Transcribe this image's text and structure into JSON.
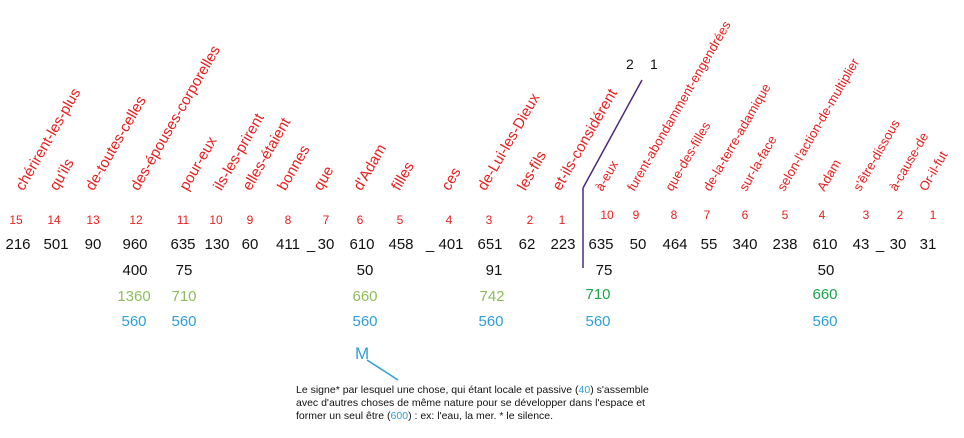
{
  "colors": {
    "red": "#e8201f",
    "black": "#111111",
    "olive": "#8fbc5a",
    "green": "#1aa54a",
    "blue": "#2f9fd6",
    "purple": "#4b2a7a"
  },
  "left_group": {
    "words": [
      "chérirent-les-plus",
      "qu'ils",
      "de-toutes-celles",
      "des-épouses-corporelles",
      "pour-eux",
      "ils-les-prirent",
      "elles-étaient",
      "bonnes",
      "que",
      "d'Adam",
      "filles",
      "ces",
      "de-Lui-les-Dieux",
      "les-fils",
      "et-ils-considérent"
    ],
    "indices": [
      "15",
      "14",
      "13",
      "12",
      "11",
      "10",
      "9",
      "8",
      "7",
      "6",
      "5",
      "4",
      "3",
      "2",
      "1"
    ],
    "values": [
      "216",
      "501",
      "90",
      "960",
      "635",
      "130",
      "60",
      "411",
      "30",
      "610",
      "458",
      "401",
      "651",
      "62",
      "223"
    ],
    "separators": [
      "_",
      "_"
    ],
    "row2": [
      "400",
      "75",
      "50",
      "91"
    ],
    "row3": [
      "1360",
      "710",
      "660",
      "742"
    ],
    "row4": [
      "560",
      "560",
      "560",
      "560"
    ]
  },
  "right_group": {
    "words": [
      "à-eux",
      "furent-abondamment-engendrées",
      "que-des-filles",
      "de-la-terre-adamique",
      "sur-la-face",
      "selon-l'action-de-multiplier",
      "Adam",
      "s'être-dissous",
      "à-cause-de",
      "Or-il-fut"
    ],
    "indices": [
      "10",
      "9",
      "8",
      "7",
      "6",
      "5",
      "4",
      "3",
      "2",
      "1"
    ],
    "values": [
      "635",
      "50",
      "464",
      "55",
      "340",
      "238",
      "610",
      "43",
      "30",
      "31"
    ],
    "separators": [
      "_"
    ],
    "row2": [
      "75",
      "50"
    ],
    "row3": [
      "710",
      "660"
    ],
    "row4": [
      "560",
      "560"
    ]
  },
  "marker": {
    "two": "2",
    "one": "1"
  },
  "m_letter": "M",
  "description": {
    "line1_a": "Le signe*  par lesquel  une chose,  qui étant locale  et passive  (",
    "line1_num": "40",
    "line1_b": ") s'assemble",
    "line2": "avec d'autres  choses de  même nature  pour se  développer dans l'espace  et",
    "line3_a": "former un seul être (",
    "line3_num": "600",
    "line3_b": ") : ex: l'eau, la mer. * le silence."
  }
}
